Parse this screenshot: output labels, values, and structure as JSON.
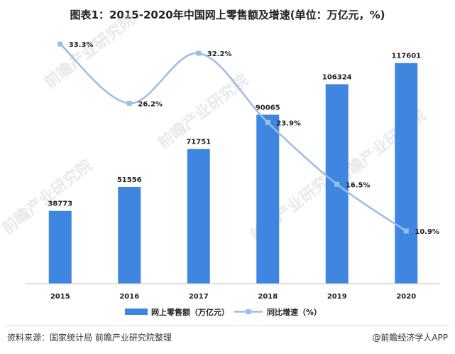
{
  "title": "图表1：2015-2020年中国网上零售额及增速(单位：万亿元，%)",
  "source": "资料来源：国家统计局 前瞻产业研究院整理",
  "brand": "@前瞻经济学人APP",
  "watermark": "前瞻产业研究院",
  "colors": {
    "bar": "#3f86e0",
    "line": "#9bbde6",
    "axis": "#bfbfbf"
  },
  "chart_data": {
    "type": "bar",
    "categories": [
      "2015",
      "2016",
      "2017",
      "2018",
      "2019",
      "2020"
    ],
    "series": [
      {
        "name": "网上零售额（万亿元）",
        "type": "bar",
        "values": [
          38773,
          51556,
          71751,
          90065,
          106324,
          117601
        ],
        "labels": [
          "38773",
          "51556",
          "71751",
          "90065",
          "106324",
          "117601"
        ]
      },
      {
        "name": "同比增速（%）",
        "type": "line",
        "smooth": true,
        "values": [
          33.3,
          26.2,
          32.2,
          23.9,
          16.5,
          10.9
        ],
        "labels": [
          "33.3%",
          "26.2%",
          "32.2%",
          "23.9%",
          "16.5%",
          "10.9%"
        ]
      }
    ],
    "ylim_bar": [
      0,
      130000
    ],
    "ylim_line": [
      0,
      36
    ],
    "legend_position": "bottom",
    "grid": false
  }
}
